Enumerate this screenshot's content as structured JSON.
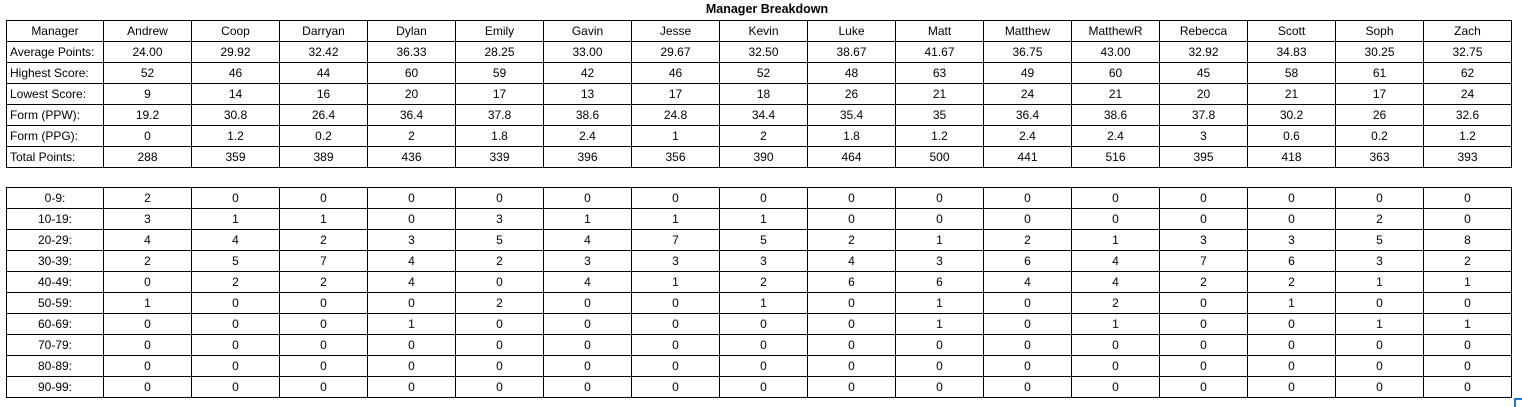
{
  "title": "Manager Breakdown",
  "header_label": "Manager",
  "managers": [
    "Andrew",
    "Coop",
    "Darryan",
    "Dylan",
    "Emily",
    "Gavin",
    "Jesse",
    "Kevin",
    "Luke",
    "Matt",
    "Matthew",
    "MatthewR",
    "Rebecca",
    "Scott",
    "Soph",
    "Zach"
  ],
  "stats": [
    {
      "label": "Average Points:",
      "values": [
        "24.00",
        "29.92",
        "32.42",
        "36.33",
        "28.25",
        "33.00",
        "29.67",
        "32.50",
        "38.67",
        "41.67",
        "36.75",
        "43.00",
        "32.92",
        "34.83",
        "30.25",
        "32.75"
      ]
    },
    {
      "label": "Highest Score:",
      "values": [
        "52",
        "46",
        "44",
        "60",
        "59",
        "42",
        "46",
        "52",
        "48",
        "63",
        "49",
        "60",
        "45",
        "58",
        "61",
        "62"
      ]
    },
    {
      "label": "Lowest Score:",
      "values": [
        "9",
        "14",
        "16",
        "20",
        "17",
        "13",
        "17",
        "18",
        "26",
        "21",
        "24",
        "21",
        "20",
        "21",
        "17",
        "24"
      ]
    },
    {
      "label": "Form (PPW):",
      "values": [
        "19.2",
        "30.8",
        "26.4",
        "36.4",
        "37.8",
        "38.6",
        "24.8",
        "34.4",
        "35.4",
        "35",
        "36.4",
        "38.6",
        "37.8",
        "30.2",
        "26",
        "32.6"
      ]
    },
    {
      "label": "Form (PPG):",
      "values": [
        "0",
        "1.2",
        "0.2",
        "2",
        "1.8",
        "2.4",
        "1",
        "2",
        "1.8",
        "1.2",
        "2.4",
        "2.4",
        "3",
        "0.6",
        "0.2",
        "1.2"
      ]
    },
    {
      "label": "Total Points:",
      "values": [
        "288",
        "359",
        "389",
        "436",
        "339",
        "396",
        "356",
        "390",
        "464",
        "500",
        "441",
        "516",
        "395",
        "418",
        "363",
        "393"
      ]
    }
  ],
  "buckets": [
    {
      "label": "0-9:",
      "values": [
        "2",
        "0",
        "0",
        "0",
        "0",
        "0",
        "0",
        "0",
        "0",
        "0",
        "0",
        "0",
        "0",
        "0",
        "0",
        "0"
      ]
    },
    {
      "label": "10-19:",
      "values": [
        "3",
        "1",
        "1",
        "0",
        "3",
        "1",
        "1",
        "1",
        "0",
        "0",
        "0",
        "0",
        "0",
        "0",
        "2",
        "0"
      ]
    },
    {
      "label": "20-29:",
      "values": [
        "4",
        "4",
        "2",
        "3",
        "5",
        "4",
        "7",
        "5",
        "2",
        "1",
        "2",
        "1",
        "3",
        "3",
        "5",
        "8"
      ]
    },
    {
      "label": "30-39:",
      "values": [
        "2",
        "5",
        "7",
        "4",
        "2",
        "3",
        "3",
        "3",
        "4",
        "3",
        "6",
        "4",
        "7",
        "6",
        "3",
        "2"
      ]
    },
    {
      "label": "40-49:",
      "values": [
        "0",
        "2",
        "2",
        "4",
        "0",
        "4",
        "1",
        "2",
        "6",
        "6",
        "4",
        "4",
        "2",
        "2",
        "1",
        "1"
      ]
    },
    {
      "label": "50-59:",
      "values": [
        "1",
        "0",
        "0",
        "0",
        "2",
        "0",
        "0",
        "1",
        "0",
        "1",
        "0",
        "2",
        "0",
        "1",
        "0",
        "0"
      ]
    },
    {
      "label": "60-69:",
      "values": [
        "0",
        "0",
        "0",
        "1",
        "0",
        "0",
        "0",
        "0",
        "0",
        "1",
        "0",
        "1",
        "0",
        "0",
        "1",
        "1"
      ]
    },
    {
      "label": "70-79:",
      "values": [
        "0",
        "0",
        "0",
        "0",
        "0",
        "0",
        "0",
        "0",
        "0",
        "0",
        "0",
        "0",
        "0",
        "0",
        "0",
        "0"
      ]
    },
    {
      "label": "80-89:",
      "values": [
        "0",
        "0",
        "0",
        "0",
        "0",
        "0",
        "0",
        "0",
        "0",
        "0",
        "0",
        "0",
        "0",
        "0",
        "0",
        "0"
      ]
    },
    {
      "label": "90-99:",
      "values": [
        "0",
        "0",
        "0",
        "0",
        "0",
        "0",
        "0",
        "0",
        "0",
        "0",
        "0",
        "0",
        "0",
        "0",
        "0",
        "0"
      ]
    }
  ]
}
